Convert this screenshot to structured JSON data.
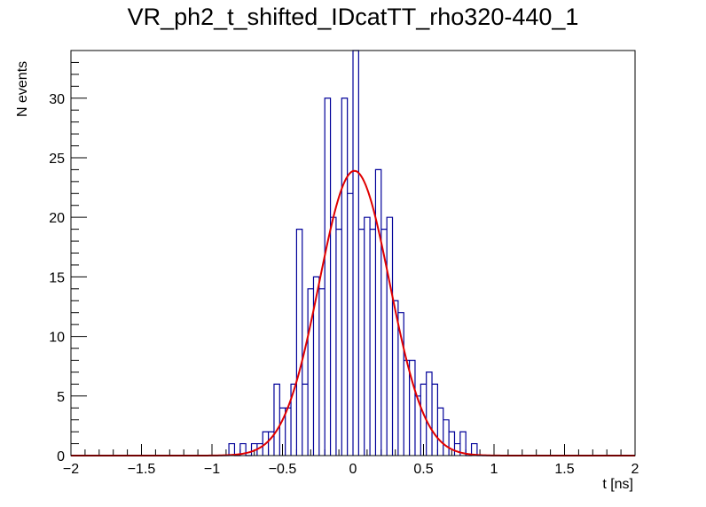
{
  "chart_data": {
    "type": "histogram",
    "title": "VR_ph2_t_shifted_IDcatTT_rho320-440_1",
    "xlabel": "t [ns]",
    "ylabel": "N events",
    "xlim": [
      -2,
      2
    ],
    "ylim": [
      0,
      34
    ],
    "bin_width": 0.04,
    "x_ticks": [
      -2,
      -1.5,
      -1,
      -0.5,
      0,
      0.5,
      1,
      1.5,
      2
    ],
    "x_tick_labels": [
      "−2",
      "−1.5",
      "−1",
      "−0.5",
      "0",
      "0.5",
      "1",
      "1.5",
      "2"
    ],
    "y_ticks": [
      0,
      5,
      10,
      15,
      20,
      25,
      30
    ],
    "y_tick_labels": [
      "0",
      "5",
      "10",
      "15",
      "20",
      "25",
      "30"
    ],
    "histogram_bins": [
      {
        "x": -0.88,
        "count": 1
      },
      {
        "x": -0.84,
        "count": 0
      },
      {
        "x": -0.8,
        "count": 1
      },
      {
        "x": -0.76,
        "count": 0
      },
      {
        "x": -0.72,
        "count": 1
      },
      {
        "x": -0.68,
        "count": 1
      },
      {
        "x": -0.64,
        "count": 2
      },
      {
        "x": -0.6,
        "count": 2
      },
      {
        "x": -0.56,
        "count": 6
      },
      {
        "x": -0.52,
        "count": 4
      },
      {
        "x": -0.48,
        "count": 4
      },
      {
        "x": -0.44,
        "count": 6
      },
      {
        "x": -0.4,
        "count": 19
      },
      {
        "x": -0.36,
        "count": 6
      },
      {
        "x": -0.32,
        "count": 14
      },
      {
        "x": -0.28,
        "count": 15
      },
      {
        "x": -0.24,
        "count": 14
      },
      {
        "x": -0.2,
        "count": 30
      },
      {
        "x": -0.16,
        "count": 20
      },
      {
        "x": -0.12,
        "count": 19
      },
      {
        "x": -0.08,
        "count": 30
      },
      {
        "x": -0.04,
        "count": 22
      },
      {
        "x": 0.0,
        "count": 34
      },
      {
        "x": 0.04,
        "count": 19
      },
      {
        "x": 0.08,
        "count": 20
      },
      {
        "x": 0.12,
        "count": 19
      },
      {
        "x": 0.16,
        "count": 24
      },
      {
        "x": 0.2,
        "count": 19
      },
      {
        "x": 0.24,
        "count": 20
      },
      {
        "x": 0.28,
        "count": 13
      },
      {
        "x": 0.32,
        "count": 12
      },
      {
        "x": 0.36,
        "count": 8
      },
      {
        "x": 0.4,
        "count": 8
      },
      {
        "x": 0.44,
        "count": 5
      },
      {
        "x": 0.48,
        "count": 6
      },
      {
        "x": 0.52,
        "count": 7
      },
      {
        "x": 0.56,
        "count": 6
      },
      {
        "x": 0.6,
        "count": 4
      },
      {
        "x": 0.64,
        "count": 3
      },
      {
        "x": 0.68,
        "count": 2
      },
      {
        "x": 0.72,
        "count": 1
      },
      {
        "x": 0.76,
        "count": 2
      },
      {
        "x": 0.8,
        "count": 0
      },
      {
        "x": 0.84,
        "count": 1
      },
      {
        "x": 0.88,
        "count": 0
      }
    ],
    "fit": {
      "function": "gaussian",
      "amplitude": 23.9,
      "mean": 0.01,
      "sigma": 0.25
    },
    "colors": {
      "histogram": "#000099",
      "fit": "#e00000",
      "axes": "#000000"
    }
  }
}
